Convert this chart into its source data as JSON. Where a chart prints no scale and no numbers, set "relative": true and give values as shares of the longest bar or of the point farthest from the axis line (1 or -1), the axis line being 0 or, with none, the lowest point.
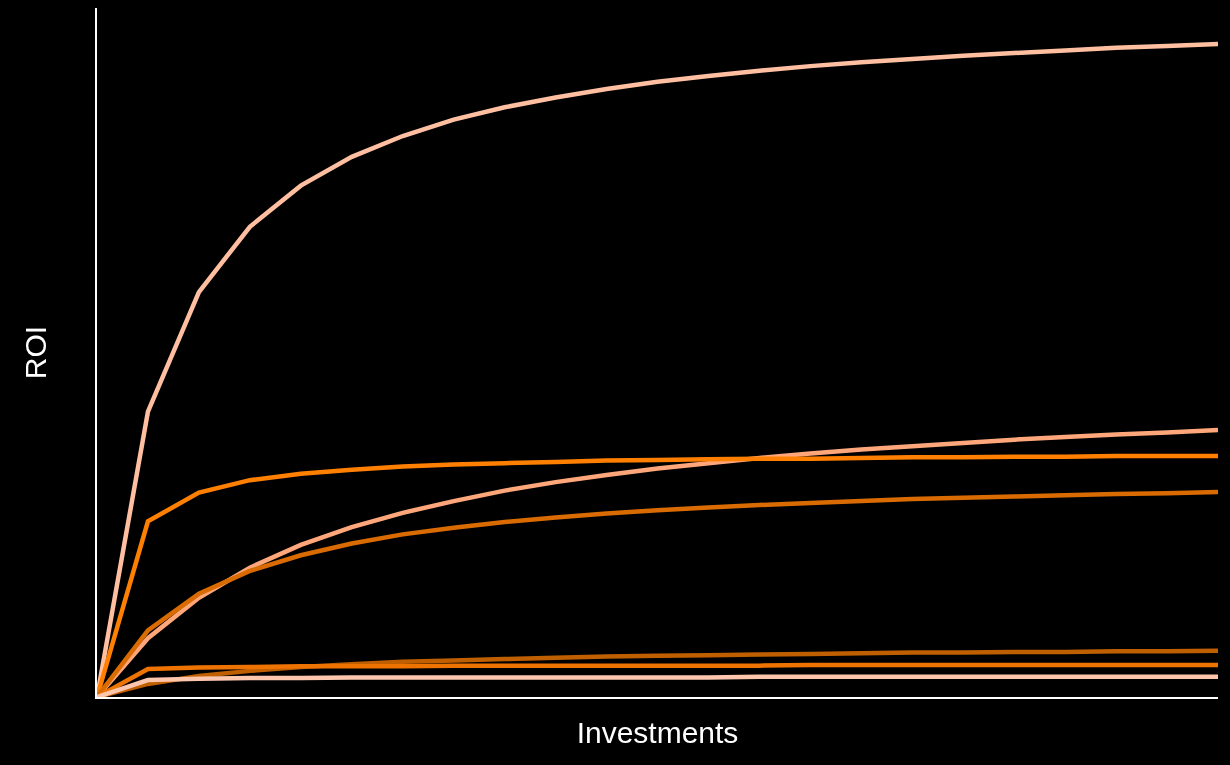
{
  "chart_data": {
    "type": "line",
    "relative": true,
    "xlabel": "Investments",
    "ylabel": "ROI",
    "categories": [
      null,
      null,
      null,
      null,
      null,
      null,
      null,
      null,
      null,
      null,
      null,
      null,
      null,
      null,
      null,
      null,
      null,
      null,
      null,
      null,
      null,
      null,
      null
    ],
    "series": [
      {
        "color": "#ffbfa0",
        "values": [
          0,
          0.437,
          0.62,
          0.72,
          0.783,
          0.827,
          0.859,
          0.884,
          0.903,
          0.918,
          0.931,
          0.942,
          0.951,
          0.959,
          0.966,
          0.972,
          0.977,
          0.982,
          0.986,
          0.99,
          0.994,
          0.997,
          1.0
        ]
      },
      {
        "color": "#ffa77a",
        "values": [
          0,
          0.09,
          0.152,
          0.198,
          0.233,
          0.26,
          0.282,
          0.3,
          0.316,
          0.329,
          0.34,
          0.35,
          0.358,
          0.366,
          0.373,
          0.379,
          0.384,
          0.389,
          0.394,
          0.398,
          0.402,
          0.405,
          0.409
        ]
      },
      {
        "color": "#ff8000",
        "values": [
          0,
          0.269,
          0.313,
          0.332,
          0.342,
          0.348,
          0.353,
          0.356,
          0.358,
          0.36,
          0.362,
          0.363,
          0.364,
          0.365,
          0.365,
          0.366,
          0.367,
          0.367,
          0.368,
          0.368,
          0.369,
          0.369,
          0.369
        ]
      },
      {
        "color": "#d96b00",
        "values": [
          0,
          0.102,
          0.158,
          0.193,
          0.217,
          0.235,
          0.249,
          0.259,
          0.268,
          0.275,
          0.281,
          0.286,
          0.29,
          0.294,
          0.297,
          0.3,
          0.303,
          0.305,
          0.307,
          0.309,
          0.311,
          0.312,
          0.314
        ]
      },
      {
        "color": "#bf5f00",
        "values": [
          0,
          0.02,
          0.032,
          0.04,
          0.046,
          0.05,
          0.054,
          0.056,
          0.058,
          0.06,
          0.062,
          0.063,
          0.064,
          0.065,
          0.066,
          0.067,
          0.068,
          0.068,
          0.069,
          0.069,
          0.07,
          0.07,
          0.071
        ]
      },
      {
        "color": "#ee7300",
        "values": [
          0,
          0.043,
          0.045,
          0.046,
          0.047,
          0.047,
          0.047,
          0.048,
          0.048,
          0.048,
          0.048,
          0.048,
          0.048,
          0.048,
          0.049,
          0.049,
          0.049,
          0.049,
          0.049,
          0.049,
          0.049,
          0.049,
          0.049
        ]
      },
      {
        "color": "#ffc6ae",
        "values": [
          0,
          0.026,
          0.028,
          0.029,
          0.029,
          0.03,
          0.03,
          0.03,
          0.03,
          0.03,
          0.03,
          0.03,
          0.03,
          0.031,
          0.031,
          0.031,
          0.031,
          0.031,
          0.031,
          0.031,
          0.031,
          0.031,
          0.031
        ]
      }
    ]
  }
}
